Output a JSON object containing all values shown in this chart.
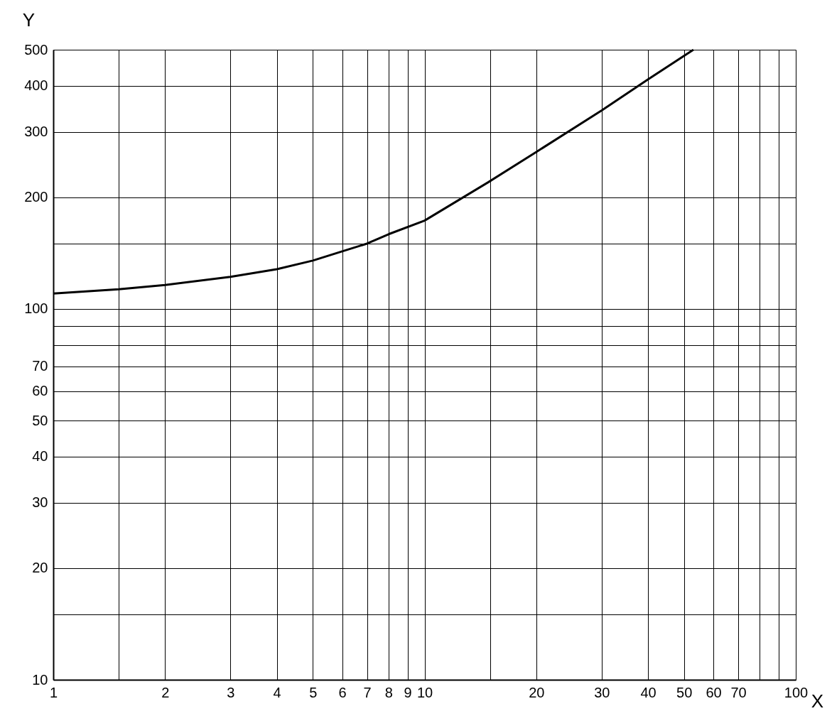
{
  "chart_data": {
    "type": "line",
    "xlabel": "X",
    "ylabel": "Y",
    "log": "xy",
    "grid": true,
    "line_style": "solid",
    "marker": "none",
    "x": [
      1,
      1.5,
      2,
      3,
      4,
      5,
      6,
      7,
      8,
      10,
      15,
      20,
      30,
      40,
      53
    ],
    "series": [
      {
        "color": "#000000",
        "values": [
          110,
          113,
          116,
          122,
          128,
          135,
          143,
          150,
          159,
          173,
          221,
          265,
          343,
          416,
          500
        ]
      }
    ],
    "xlim": [
      1,
      100
    ],
    "ylim": [
      10,
      500
    ],
    "xticks": [
      1,
      {
        "value": 1.5,
        "label": null
      },
      2,
      3,
      4,
      5,
      6,
      7,
      8,
      9,
      10,
      {
        "value": 15,
        "label": null
      },
      20,
      30,
      40,
      50,
      60,
      70,
      {
        "value": 80,
        "label": null
      },
      {
        "value": 90,
        "label": null
      },
      100
    ],
    "yticks": [
      10,
      {
        "value": 15,
        "label": null
      },
      20,
      30,
      40,
      50,
      60,
      70,
      {
        "value": 80,
        "label": null
      },
      {
        "value": 90,
        "label": null
      },
      100,
      {
        "value": 150,
        "label": null
      },
      200,
      300,
      400,
      500
    ]
  }
}
